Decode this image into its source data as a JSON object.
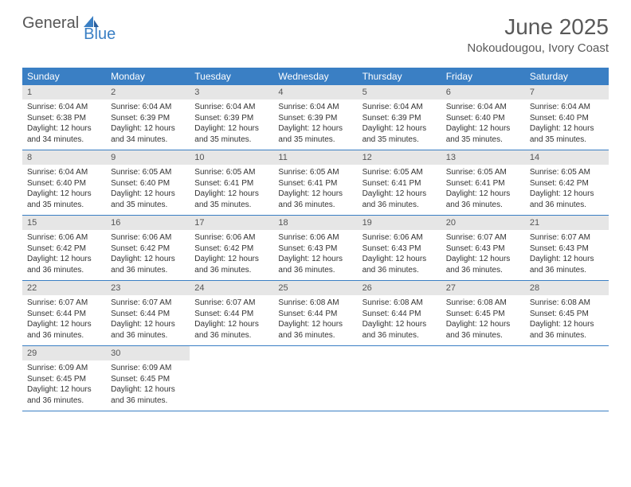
{
  "logo": {
    "text1": "General",
    "text2": "Blue"
  },
  "title": "June 2025",
  "location": "Nokoudougou, Ivory Coast",
  "colors": {
    "header_bg": "#3a7fc4",
    "header_text": "#ffffff",
    "daynum_bg": "#e6e6e6",
    "text": "#333333",
    "title_text": "#595959"
  },
  "weekdays": [
    "Sunday",
    "Monday",
    "Tuesday",
    "Wednesday",
    "Thursday",
    "Friday",
    "Saturday"
  ],
  "weeks": [
    [
      {
        "d": "1",
        "sr": "6:04 AM",
        "ss": "6:38 PM",
        "dl": "12 hours and 34 minutes."
      },
      {
        "d": "2",
        "sr": "6:04 AM",
        "ss": "6:39 PM",
        "dl": "12 hours and 34 minutes."
      },
      {
        "d": "3",
        "sr": "6:04 AM",
        "ss": "6:39 PM",
        "dl": "12 hours and 35 minutes."
      },
      {
        "d": "4",
        "sr": "6:04 AM",
        "ss": "6:39 PM",
        "dl": "12 hours and 35 minutes."
      },
      {
        "d": "5",
        "sr": "6:04 AM",
        "ss": "6:39 PM",
        "dl": "12 hours and 35 minutes."
      },
      {
        "d": "6",
        "sr": "6:04 AM",
        "ss": "6:40 PM",
        "dl": "12 hours and 35 minutes."
      },
      {
        "d": "7",
        "sr": "6:04 AM",
        "ss": "6:40 PM",
        "dl": "12 hours and 35 minutes."
      }
    ],
    [
      {
        "d": "8",
        "sr": "6:04 AM",
        "ss": "6:40 PM",
        "dl": "12 hours and 35 minutes."
      },
      {
        "d": "9",
        "sr": "6:05 AM",
        "ss": "6:40 PM",
        "dl": "12 hours and 35 minutes."
      },
      {
        "d": "10",
        "sr": "6:05 AM",
        "ss": "6:41 PM",
        "dl": "12 hours and 35 minutes."
      },
      {
        "d": "11",
        "sr": "6:05 AM",
        "ss": "6:41 PM",
        "dl": "12 hours and 36 minutes."
      },
      {
        "d": "12",
        "sr": "6:05 AM",
        "ss": "6:41 PM",
        "dl": "12 hours and 36 minutes."
      },
      {
        "d": "13",
        "sr": "6:05 AM",
        "ss": "6:41 PM",
        "dl": "12 hours and 36 minutes."
      },
      {
        "d": "14",
        "sr": "6:05 AM",
        "ss": "6:42 PM",
        "dl": "12 hours and 36 minutes."
      }
    ],
    [
      {
        "d": "15",
        "sr": "6:06 AM",
        "ss": "6:42 PM",
        "dl": "12 hours and 36 minutes."
      },
      {
        "d": "16",
        "sr": "6:06 AM",
        "ss": "6:42 PM",
        "dl": "12 hours and 36 minutes."
      },
      {
        "d": "17",
        "sr": "6:06 AM",
        "ss": "6:42 PM",
        "dl": "12 hours and 36 minutes."
      },
      {
        "d": "18",
        "sr": "6:06 AM",
        "ss": "6:43 PM",
        "dl": "12 hours and 36 minutes."
      },
      {
        "d": "19",
        "sr": "6:06 AM",
        "ss": "6:43 PM",
        "dl": "12 hours and 36 minutes."
      },
      {
        "d": "20",
        "sr": "6:07 AM",
        "ss": "6:43 PM",
        "dl": "12 hours and 36 minutes."
      },
      {
        "d": "21",
        "sr": "6:07 AM",
        "ss": "6:43 PM",
        "dl": "12 hours and 36 minutes."
      }
    ],
    [
      {
        "d": "22",
        "sr": "6:07 AM",
        "ss": "6:44 PM",
        "dl": "12 hours and 36 minutes."
      },
      {
        "d": "23",
        "sr": "6:07 AM",
        "ss": "6:44 PM",
        "dl": "12 hours and 36 minutes."
      },
      {
        "d": "24",
        "sr": "6:07 AM",
        "ss": "6:44 PM",
        "dl": "12 hours and 36 minutes."
      },
      {
        "d": "25",
        "sr": "6:08 AM",
        "ss": "6:44 PM",
        "dl": "12 hours and 36 minutes."
      },
      {
        "d": "26",
        "sr": "6:08 AM",
        "ss": "6:44 PM",
        "dl": "12 hours and 36 minutes."
      },
      {
        "d": "27",
        "sr": "6:08 AM",
        "ss": "6:45 PM",
        "dl": "12 hours and 36 minutes."
      },
      {
        "d": "28",
        "sr": "6:08 AM",
        "ss": "6:45 PM",
        "dl": "12 hours and 36 minutes."
      }
    ],
    [
      {
        "d": "29",
        "sr": "6:09 AM",
        "ss": "6:45 PM",
        "dl": "12 hours and 36 minutes."
      },
      {
        "d": "30",
        "sr": "6:09 AM",
        "ss": "6:45 PM",
        "dl": "12 hours and 36 minutes."
      },
      null,
      null,
      null,
      null,
      null
    ]
  ],
  "labels": {
    "sunrise": "Sunrise:",
    "sunset": "Sunset:",
    "daylight": "Daylight:"
  }
}
